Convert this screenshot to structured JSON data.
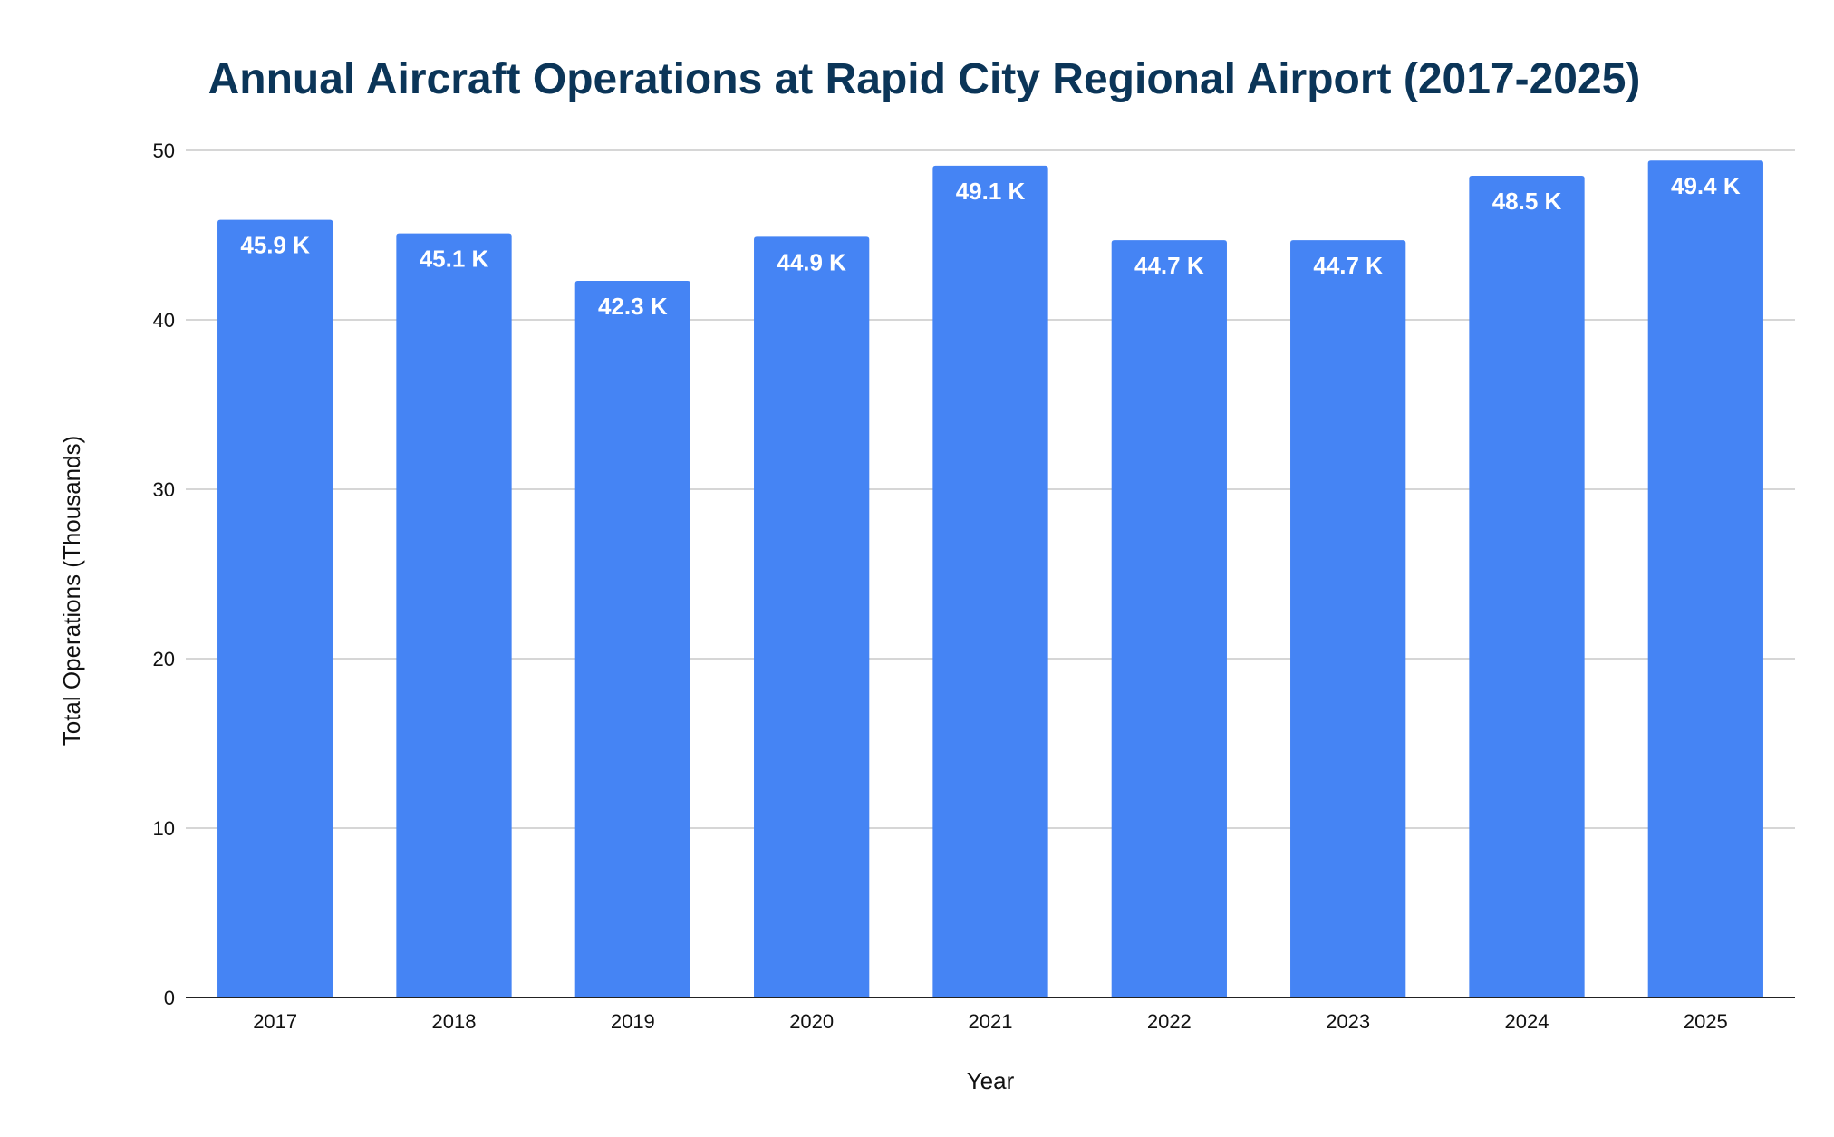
{
  "chart_data": {
    "type": "bar",
    "title": "Annual Aircraft Operations at Rapid City Regional Airport (2017-2025)",
    "xlabel": "Year",
    "ylabel": "Total Operations (Thousands)",
    "categories": [
      "2017",
      "2018",
      "2019",
      "2020",
      "2021",
      "2022",
      "2023",
      "2024",
      "2025"
    ],
    "values": [
      45.9,
      45.1,
      42.3,
      44.9,
      49.1,
      44.7,
      44.7,
      48.5,
      49.4
    ],
    "data_labels": [
      "45.9 K",
      "45.1 K",
      "42.3 K",
      "44.9 K",
      "49.1 K",
      "44.7 K",
      "44.7 K",
      "48.5 K",
      "49.4 K"
    ],
    "ylim": [
      0,
      50
    ],
    "yticks": [
      "0",
      "10",
      "20",
      "30",
      "40",
      "50"
    ],
    "grid": true,
    "legend": "none",
    "colors": {
      "bar": "#4584f4",
      "title": "#0b3558",
      "grid": "#c8c8c8",
      "axis": "#222222",
      "label": "#111111",
      "data_label": "#ffffff"
    }
  }
}
